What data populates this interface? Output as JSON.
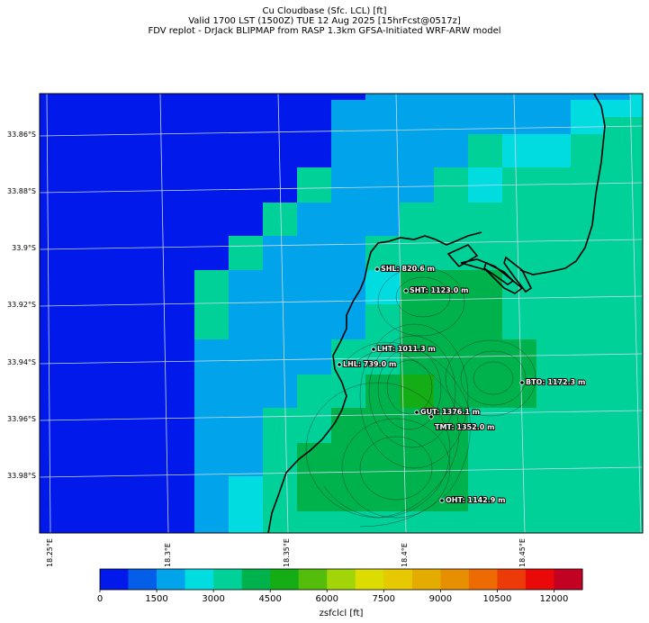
{
  "title": {
    "line1": "Cu Cloudbase (Sfc. LCL) [ft]",
    "line2": "Valid 1700 LST (1500Z) TUE 12 Aug 2025 [15hrFcst@0517z]",
    "line3": "FDV replot - DrJack BLIPMAP from RASP 1.3km GFSA-Initiated WRF-ARW model"
  },
  "lat_labels": [
    "33.86°S",
    "33.88°S",
    "33.9°S",
    "33.92°S",
    "33.94°S",
    "33.96°S",
    "33.98°S"
  ],
  "lon_labels": [
    "18.25°E",
    "18.3°E",
    "18.35°E",
    "18.4°E",
    "18.45°E"
  ],
  "stations": [
    {
      "id": "SHL",
      "label": "SHL: 820.6 m"
    },
    {
      "id": "SHT",
      "label": "SHT: 1123.0 m"
    },
    {
      "id": "LHT",
      "label": "LHT: 1011.3 m"
    },
    {
      "id": "LHL",
      "label": "LHL: 739.0 m"
    },
    {
      "id": "BTO",
      "label": "BTO: 1172.3 m"
    },
    {
      "id": "GUT",
      "label": "GUT: 1376.1 m"
    },
    {
      "id": "TMT",
      "label": "TMT: 1352.0 m"
    },
    {
      "id": "OHT",
      "label": "OHT: 1142.9 m"
    }
  ],
  "colorbar": {
    "label": "zsfclcl [ft]",
    "ticks": [
      "0",
      "1500",
      "3000",
      "4500",
      "6000",
      "7500",
      "9000",
      "10500",
      "12000"
    ],
    "min": 0,
    "max": 12750,
    "step": 750,
    "colors": [
      "#0219ec",
      "#045ee8",
      "#01a4ea",
      "#00dce0",
      "#00d198",
      "#00b24c",
      "#15ad16",
      "#54bc0b",
      "#a2d508",
      "#dcdc01",
      "#e6c900",
      "#e5ac00",
      "#e68f00",
      "#ee6a03",
      "#ec3a08",
      "#e90909",
      "#c20123"
    ]
  },
  "colors": {
    "coastline": "#000000",
    "contour": "#222222",
    "gridline": "#c8d8f0"
  }
}
